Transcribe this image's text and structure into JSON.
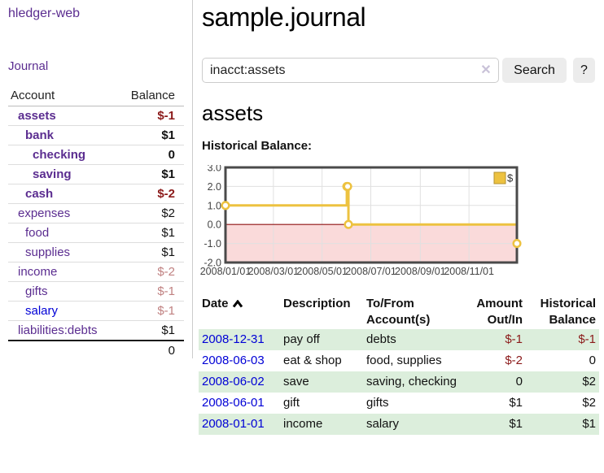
{
  "sidebar": {
    "brand": "hledger-web",
    "nav": [
      {
        "label": "Journal"
      }
    ],
    "accounts_table": {
      "headers": {
        "account": "Account",
        "balance": "Balance"
      },
      "rows": [
        {
          "name": "assets",
          "depth": 1,
          "bold": true,
          "link_color": "purple",
          "balance": "$-1",
          "balance_style": "neg-strong"
        },
        {
          "name": "bank",
          "depth": 2,
          "bold": true,
          "link_color": "purple",
          "balance": "$1",
          "balance_style": "pos"
        },
        {
          "name": "checking",
          "depth": 3,
          "bold": true,
          "link_color": "purple",
          "balance": "0",
          "balance_style": "pos"
        },
        {
          "name": "saving",
          "depth": 3,
          "bold": true,
          "link_color": "purple",
          "balance": "$1",
          "balance_style": "pos"
        },
        {
          "name": "cash",
          "depth": 2,
          "bold": true,
          "link_color": "purple",
          "balance": "$-2",
          "balance_style": "neg-strong"
        },
        {
          "name": "expenses",
          "depth": 1,
          "bold": false,
          "link_color": "purple",
          "balance": "$2",
          "balance_style": "pos"
        },
        {
          "name": "food",
          "depth": 2,
          "bold": false,
          "link_color": "purple",
          "balance": "$1",
          "balance_style": "pos"
        },
        {
          "name": "supplies",
          "depth": 2,
          "bold": false,
          "link_color": "purple",
          "balance": "$1",
          "balance_style": "pos"
        },
        {
          "name": "income",
          "depth": 1,
          "bold": false,
          "link_color": "purple",
          "balance": "$-2",
          "balance_style": "neg-light"
        },
        {
          "name": "gifts",
          "depth": 2,
          "bold": false,
          "link_color": "purple",
          "balance": "$-1",
          "balance_style": "neg-light"
        },
        {
          "name": "salary",
          "depth": 2,
          "bold": false,
          "link_color": "blue",
          "balance": "$-1",
          "balance_style": "neg-light"
        },
        {
          "name": "liabilities:debts",
          "depth": 1,
          "bold": false,
          "link_color": "purple",
          "balance": "$1",
          "balance_style": "pos"
        }
      ],
      "total": "0"
    }
  },
  "header": {
    "title": "sample.journal"
  },
  "search": {
    "query": "inacct:assets",
    "clear_icon": "✕",
    "button": "Search",
    "help_button": "?"
  },
  "account_page": {
    "heading": "assets",
    "chart_label": "Historical Balance:"
  },
  "chart_data": {
    "type": "line",
    "style": "step-after",
    "title": "",
    "xlabel": "",
    "ylabel": "",
    "ylim": [
      -2.0,
      3.0
    ],
    "y_ticks": [
      3.0,
      2.0,
      1.0,
      0.0,
      -1.0,
      -2.0
    ],
    "x_range": [
      "2008-01-01",
      "2008-12-31"
    ],
    "x_ticks": [
      {
        "date": "2008-01-01",
        "label": "2008/01/01"
      },
      {
        "date": "2008-03-01",
        "label": "2008/03/01"
      },
      {
        "date": "2008-05-01",
        "label": "2008/05/01"
      },
      {
        "date": "2008-07-01",
        "label": "2008/07/01"
      },
      {
        "date": "2008-09-01",
        "label": "2008/09/01"
      },
      {
        "date": "2008-11-01",
        "label": "2008/11/01"
      }
    ],
    "grid": true,
    "legend_position": "top-right",
    "negative_region_color": "#fadada",
    "zero_line_color": "#8f1212",
    "series": [
      {
        "name": "$",
        "color": "#EDC240",
        "points": [
          [
            "2008-01-01",
            1
          ],
          [
            "2008-06-01",
            2
          ],
          [
            "2008-06-02",
            2
          ],
          [
            "2008-06-03",
            0
          ],
          [
            "2008-12-31",
            -1
          ]
        ]
      }
    ]
  },
  "register_table": {
    "headers": [
      {
        "lines": [
          "Date"
        ],
        "sort": "ascending"
      },
      {
        "lines": [
          "Description"
        ]
      },
      {
        "lines": [
          "To/From",
          "Account(s)"
        ]
      },
      {
        "lines": [
          "Amount",
          "Out/In"
        ],
        "align": "right"
      },
      {
        "lines": [
          "Historical",
          "Balance"
        ],
        "align": "right"
      }
    ],
    "rows": [
      {
        "date": "2008-12-31",
        "description": "pay off",
        "accounts": [
          "debts"
        ],
        "amount": "$-1",
        "amount_neg": true,
        "balance": "$-1",
        "balance_neg": true
      },
      {
        "date": "2008-06-03",
        "description": "eat & shop",
        "accounts": [
          "food,",
          "supplies"
        ],
        "amount": "$-2",
        "amount_neg": true,
        "balance": "0",
        "balance_neg": false
      },
      {
        "date": "2008-06-02",
        "description": "save",
        "accounts": [
          "saving,",
          "checking"
        ],
        "amount": "0",
        "amount_neg": false,
        "balance": "$2",
        "balance_neg": false
      },
      {
        "date": "2008-06-01",
        "description": "gift",
        "accounts": [
          "gifts"
        ],
        "amount": "$1",
        "amount_neg": false,
        "balance": "$2",
        "balance_neg": false
      },
      {
        "date": "2008-01-01",
        "description": "income",
        "accounts": [
          "salary"
        ],
        "amount": "$1",
        "amount_neg": false,
        "balance": "$1",
        "balance_neg": false
      }
    ]
  },
  "colors": {
    "link_purple": "#5b2d90",
    "link_blue": "#0000d6",
    "negative_strong": "#8b1a1a",
    "negative_light": "#c08181",
    "row_stripe_green": "#dceedc",
    "chart_line_gold": "#EDC240",
    "chart_negative_pink": "#fadada",
    "chart_zero_line": "#8f1212"
  }
}
